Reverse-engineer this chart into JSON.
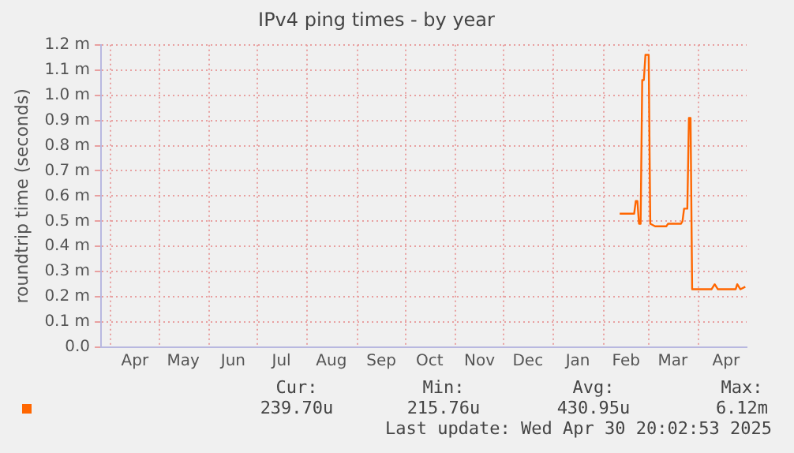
{
  "chart_data": {
    "type": "line",
    "title": "IPv4 ping times - by year",
    "ylabel": "roundtrip time (seconds)",
    "xlim": [
      "2024-03-26",
      "2025-04-30T20:00"
    ],
    "xticks": [
      {
        "value": "2024-04-01",
        "label": null
      },
      {
        "value": "2024-04-16",
        "label": "Apr"
      },
      {
        "value": "2024-05-01",
        "label": null
      },
      {
        "value": "2024-05-16",
        "label": "May"
      },
      {
        "value": "2024-06-01",
        "label": null
      },
      {
        "value": "2024-06-16",
        "label": "Jun"
      },
      {
        "value": "2024-07-01",
        "label": null
      },
      {
        "value": "2024-07-16",
        "label": "Jul"
      },
      {
        "value": "2024-08-01",
        "label": null
      },
      {
        "value": "2024-08-16",
        "label": "Aug"
      },
      {
        "value": "2024-09-01",
        "label": null
      },
      {
        "value": "2024-09-16",
        "label": "Sep"
      },
      {
        "value": "2024-10-01",
        "label": null
      },
      {
        "value": "2024-10-16",
        "label": "Oct"
      },
      {
        "value": "2024-11-01",
        "label": null
      },
      {
        "value": "2024-11-16",
        "label": "Nov"
      },
      {
        "value": "2024-12-01",
        "label": null
      },
      {
        "value": "2024-12-16",
        "label": "Dec"
      },
      {
        "value": "2025-01-01",
        "label": null
      },
      {
        "value": "2025-01-16",
        "label": "Jan"
      },
      {
        "value": "2025-02-01",
        "label": null
      },
      {
        "value": "2025-02-15",
        "label": "Feb"
      },
      {
        "value": "2025-03-01",
        "label": null
      },
      {
        "value": "2025-03-16",
        "label": "Mar"
      },
      {
        "value": "2025-04-01",
        "label": null
      },
      {
        "value": "2025-04-18",
        "label": "Apr"
      }
    ],
    "ylim": [
      0,
      1.2
    ],
    "yticks": [
      {
        "value": 0,
        "label": "0.0"
      },
      {
        "value": 0.1,
        "label": "0.1 m"
      },
      {
        "value": 0.2,
        "label": "0.2 m"
      },
      {
        "value": 0.3,
        "label": "0.3 m"
      },
      {
        "value": 0.4,
        "label": "0.4 m"
      },
      {
        "value": 0.5,
        "label": "0.5 m"
      },
      {
        "value": 0.6,
        "label": "0.6 m"
      },
      {
        "value": 0.7,
        "label": "0.7 m"
      },
      {
        "value": 0.8,
        "label": "0.8 m"
      },
      {
        "value": 0.9,
        "label": "0.9 m"
      },
      {
        "value": 1.0,
        "label": "1.0 m"
      },
      {
        "value": 1.1,
        "label": "1.1 m"
      },
      {
        "value": 1.2,
        "label": "1.2 m"
      }
    ],
    "grid": true,
    "series": [
      {
        "color": "#ff6600",
        "x": [
          "2025-02-11",
          "2025-02-20",
          "2025-02-21",
          "2025-02-22",
          "2025-02-23",
          "2025-02-24",
          "2025-02-25",
          "2025-02-26",
          "2025-02-27",
          "2025-03-01",
          "2025-03-02",
          "2025-03-05",
          "2025-03-12",
          "2025-03-13",
          "2025-03-21",
          "2025-03-22",
          "2025-03-23",
          "2025-03-25",
          "2025-03-26",
          "2025-03-27",
          "2025-03-28",
          "2025-04-09",
          "2025-04-11",
          "2025-04-13",
          "2025-04-24",
          "2025-04-25",
          "2025-04-27",
          "2025-04-30"
        ],
        "values": [
          0.53,
          0.53,
          0.58,
          0.58,
          0.49,
          0.49,
          1.06,
          1.06,
          1.16,
          1.16,
          0.49,
          0.48,
          0.48,
          0.49,
          0.49,
          0.5,
          0.55,
          0.55,
          0.91,
          0.91,
          0.23,
          0.23,
          0.25,
          0.23,
          0.23,
          0.25,
          0.23,
          0.24
        ]
      }
    ],
    "annotations": [
      "Cur:",
      "239.70u",
      "Min:",
      "215.76u",
      "Avg:",
      "430.95u",
      "Max:",
      "6.12m",
      "Last update: Wed Apr 30 20:02:53 2025"
    ]
  }
}
